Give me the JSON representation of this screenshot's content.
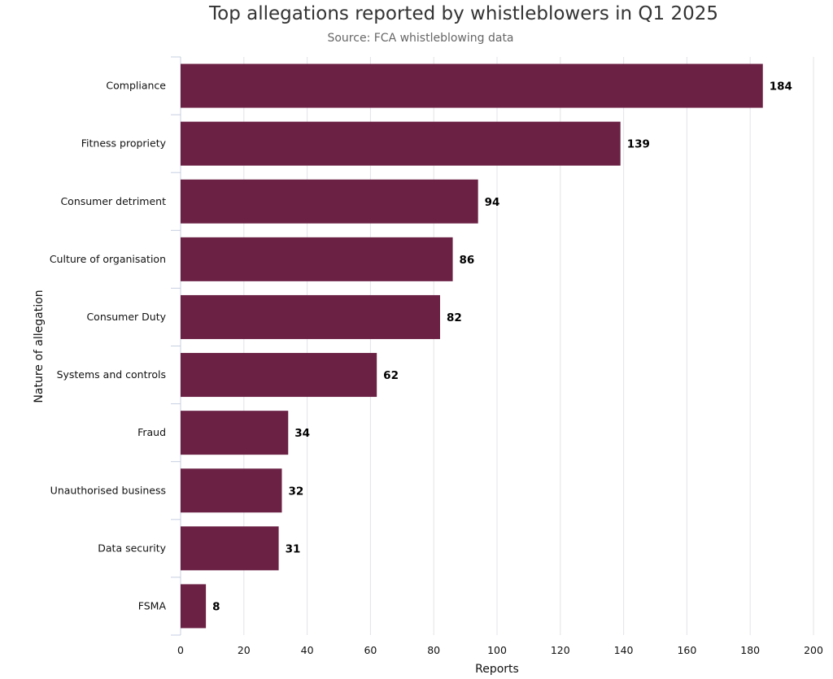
{
  "chart_data": {
    "type": "bar",
    "orientation": "horizontal",
    "title": "Top allegations reported by whistleblowers in Q1 2025",
    "subtitle": "Source: FCA whistleblowing data",
    "xlabel": "Reports",
    "ylabel": "Nature of allegation",
    "xlim": [
      0,
      200
    ],
    "xticks": [
      0,
      20,
      40,
      60,
      80,
      100,
      120,
      140,
      160,
      180,
      200
    ],
    "categories": [
      "Compliance",
      "Fitness propriety",
      "Consumer detriment",
      "Culture of organisation",
      "Consumer Duty",
      "Systems and controls",
      "Fraud",
      "Unauthorised business",
      "Data security",
      "FSMA"
    ],
    "values": [
      184,
      139,
      94,
      86,
      82,
      62,
      34,
      32,
      31,
      8
    ],
    "bar_color": "#6b2144",
    "grid": true,
    "legend": "none"
  }
}
